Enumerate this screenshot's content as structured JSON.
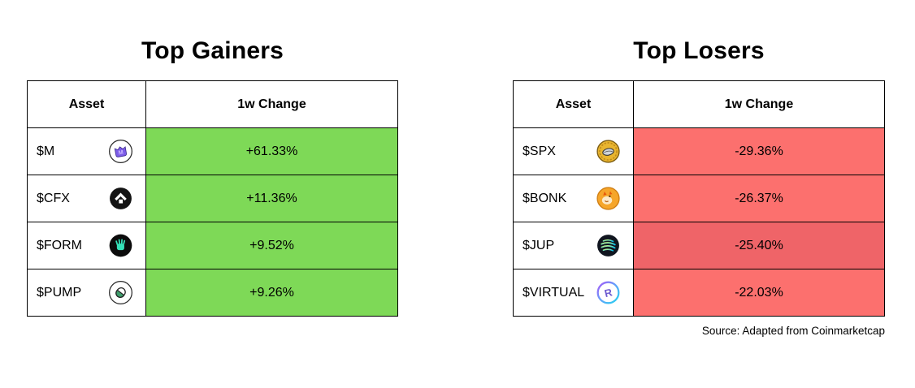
{
  "gainers": {
    "title": "Top Gainers",
    "columns": [
      "Asset",
      "1w Change"
    ],
    "rows": [
      {
        "asset": "$M",
        "icon": "m-token-icon",
        "change": "+61.33%",
        "cell_color": "#7ED957"
      },
      {
        "asset": "$CFX",
        "icon": "cfx-token-icon",
        "change": "+11.36%",
        "cell_color": "#7ED957"
      },
      {
        "asset": "$FORM",
        "icon": "form-token-icon",
        "change": "+9.52%",
        "cell_color": "#7ED957"
      },
      {
        "asset": "$PUMP",
        "icon": "pump-token-icon",
        "change": "+9.26%",
        "cell_color": "#7ED957"
      }
    ]
  },
  "losers": {
    "title": "Top Losers",
    "columns": [
      "Asset",
      "1w Change"
    ],
    "rows": [
      {
        "asset": "$SPX",
        "icon": "spx-token-icon",
        "change": "-29.36%",
        "cell_color": "#FC706E"
      },
      {
        "asset": "$BONK",
        "icon": "bonk-token-icon",
        "change": "-26.37%",
        "cell_color": "#FC706E"
      },
      {
        "asset": "$JUP",
        "icon": "jup-token-icon",
        "change": "-25.40%",
        "cell_color": "#EF6468"
      },
      {
        "asset": "$VIRTUAL",
        "icon": "virtual-token-icon",
        "change": "-22.03%",
        "cell_color": "#FC706E"
      }
    ]
  },
  "source_note": "Source: Adapted from Coinmarketcap",
  "colors": {
    "gain_cell": "#7ED957",
    "loss_cell": "#FC706E",
    "loss_cell_dark": "#EF6468",
    "table_border": "#000000",
    "text": "#000000",
    "background": "#ffffff"
  },
  "chart_data": [
    {
      "type": "table",
      "title": "Top Gainers",
      "columns": [
        "Asset",
        "1w Change"
      ],
      "categories": [
        "$M",
        "$CFX",
        "$FORM",
        "$PUMP"
      ],
      "values": [
        61.33,
        11.36,
        9.52,
        9.26
      ],
      "value_unit": "percent_change_1w",
      "highlight_color": "#7ED957"
    },
    {
      "type": "table",
      "title": "Top Losers",
      "columns": [
        "Asset",
        "1w Change"
      ],
      "categories": [
        "$SPX",
        "$BONK",
        "$JUP",
        "$VIRTUAL"
      ],
      "values": [
        -29.36,
        -26.37,
        -25.4,
        -22.03
      ],
      "value_unit": "percent_change_1w",
      "highlight_color": "#FC706E"
    }
  ]
}
